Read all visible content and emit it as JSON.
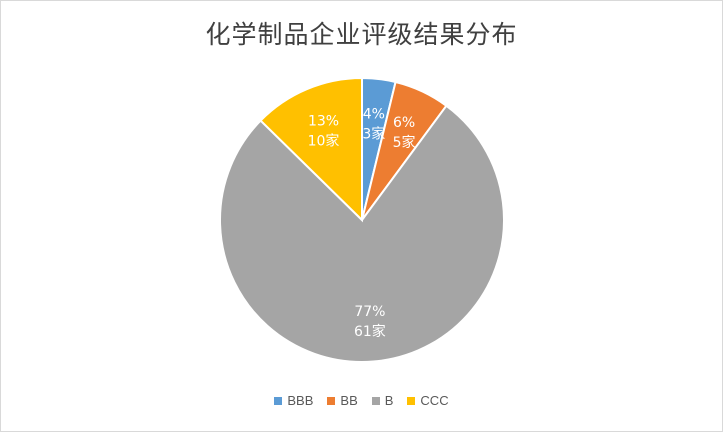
{
  "chart_data": {
    "type": "pie",
    "title": "化学制品企业评级结果分布",
    "categories": [
      "BBB",
      "BB",
      "B",
      "CCC"
    ],
    "values": [
      3,
      5,
      61,
      10
    ],
    "percent_labels": [
      "4%",
      "6%",
      "77%",
      "13%"
    ],
    "count_labels": [
      "3家",
      "5家",
      "61家",
      "10家"
    ],
    "colors": [
      "#5b9bd5",
      "#ed7d31",
      "#a5a5a5",
      "#ffc000"
    ],
    "legend_position": "bottom"
  }
}
